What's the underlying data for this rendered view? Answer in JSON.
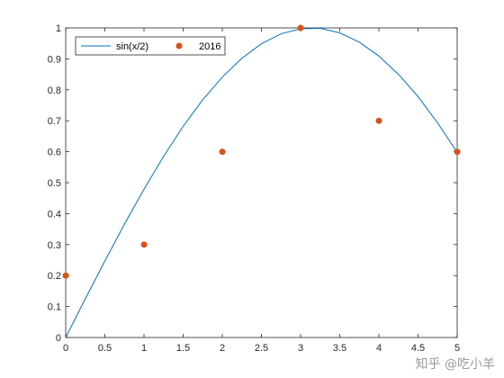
{
  "chart_data": {
    "type": "line",
    "xlim": [
      0,
      5
    ],
    "ylim": [
      0,
      1
    ],
    "xticks": [
      0,
      0.5,
      1,
      1.5,
      2,
      2.5,
      3,
      3.5,
      4,
      4.5,
      5
    ],
    "xtick_labels": [
      "0",
      "0.5",
      "1",
      "1.5",
      "2",
      "2.5",
      "3",
      "3.5",
      "4",
      "4.5",
      "5"
    ],
    "yticks": [
      0,
      0.1,
      0.2,
      0.3,
      0.4,
      0.5,
      0.6,
      0.7,
      0.8,
      0.9,
      1
    ],
    "ytick_labels": [
      "0",
      "0.1",
      "0.2",
      "0.3",
      "0.4",
      "0.5",
      "0.6",
      "0.7",
      "0.8",
      "0.9",
      "1"
    ],
    "grid": false,
    "legend_position": "top-left",
    "series": [
      {
        "name": "sin(x/2)",
        "kind": "line",
        "color": "#0072bd",
        "x": [
          0,
          0.25,
          0.5,
          0.75,
          1,
          1.25,
          1.5,
          1.75,
          2,
          2.25,
          2.5,
          2.75,
          3,
          3.25,
          3.5,
          3.75,
          4,
          4.25,
          4.5,
          4.75,
          5
        ],
        "y": [
          0,
          0.125,
          0.247,
          0.366,
          0.479,
          0.585,
          0.682,
          0.768,
          0.841,
          0.902,
          0.949,
          0.981,
          0.997,
          0.999,
          0.984,
          0.954,
          0.909,
          0.85,
          0.778,
          0.693,
          0.598
        ]
      },
      {
        "name": "2016",
        "kind": "scatter",
        "color": "#d95319",
        "x": [
          0,
          1,
          2,
          3,
          4,
          5
        ],
        "y": [
          0.2,
          0.3,
          0.6,
          1.0,
          0.7,
          0.6
        ]
      }
    ]
  },
  "watermark": "知乎 @吃小羊"
}
